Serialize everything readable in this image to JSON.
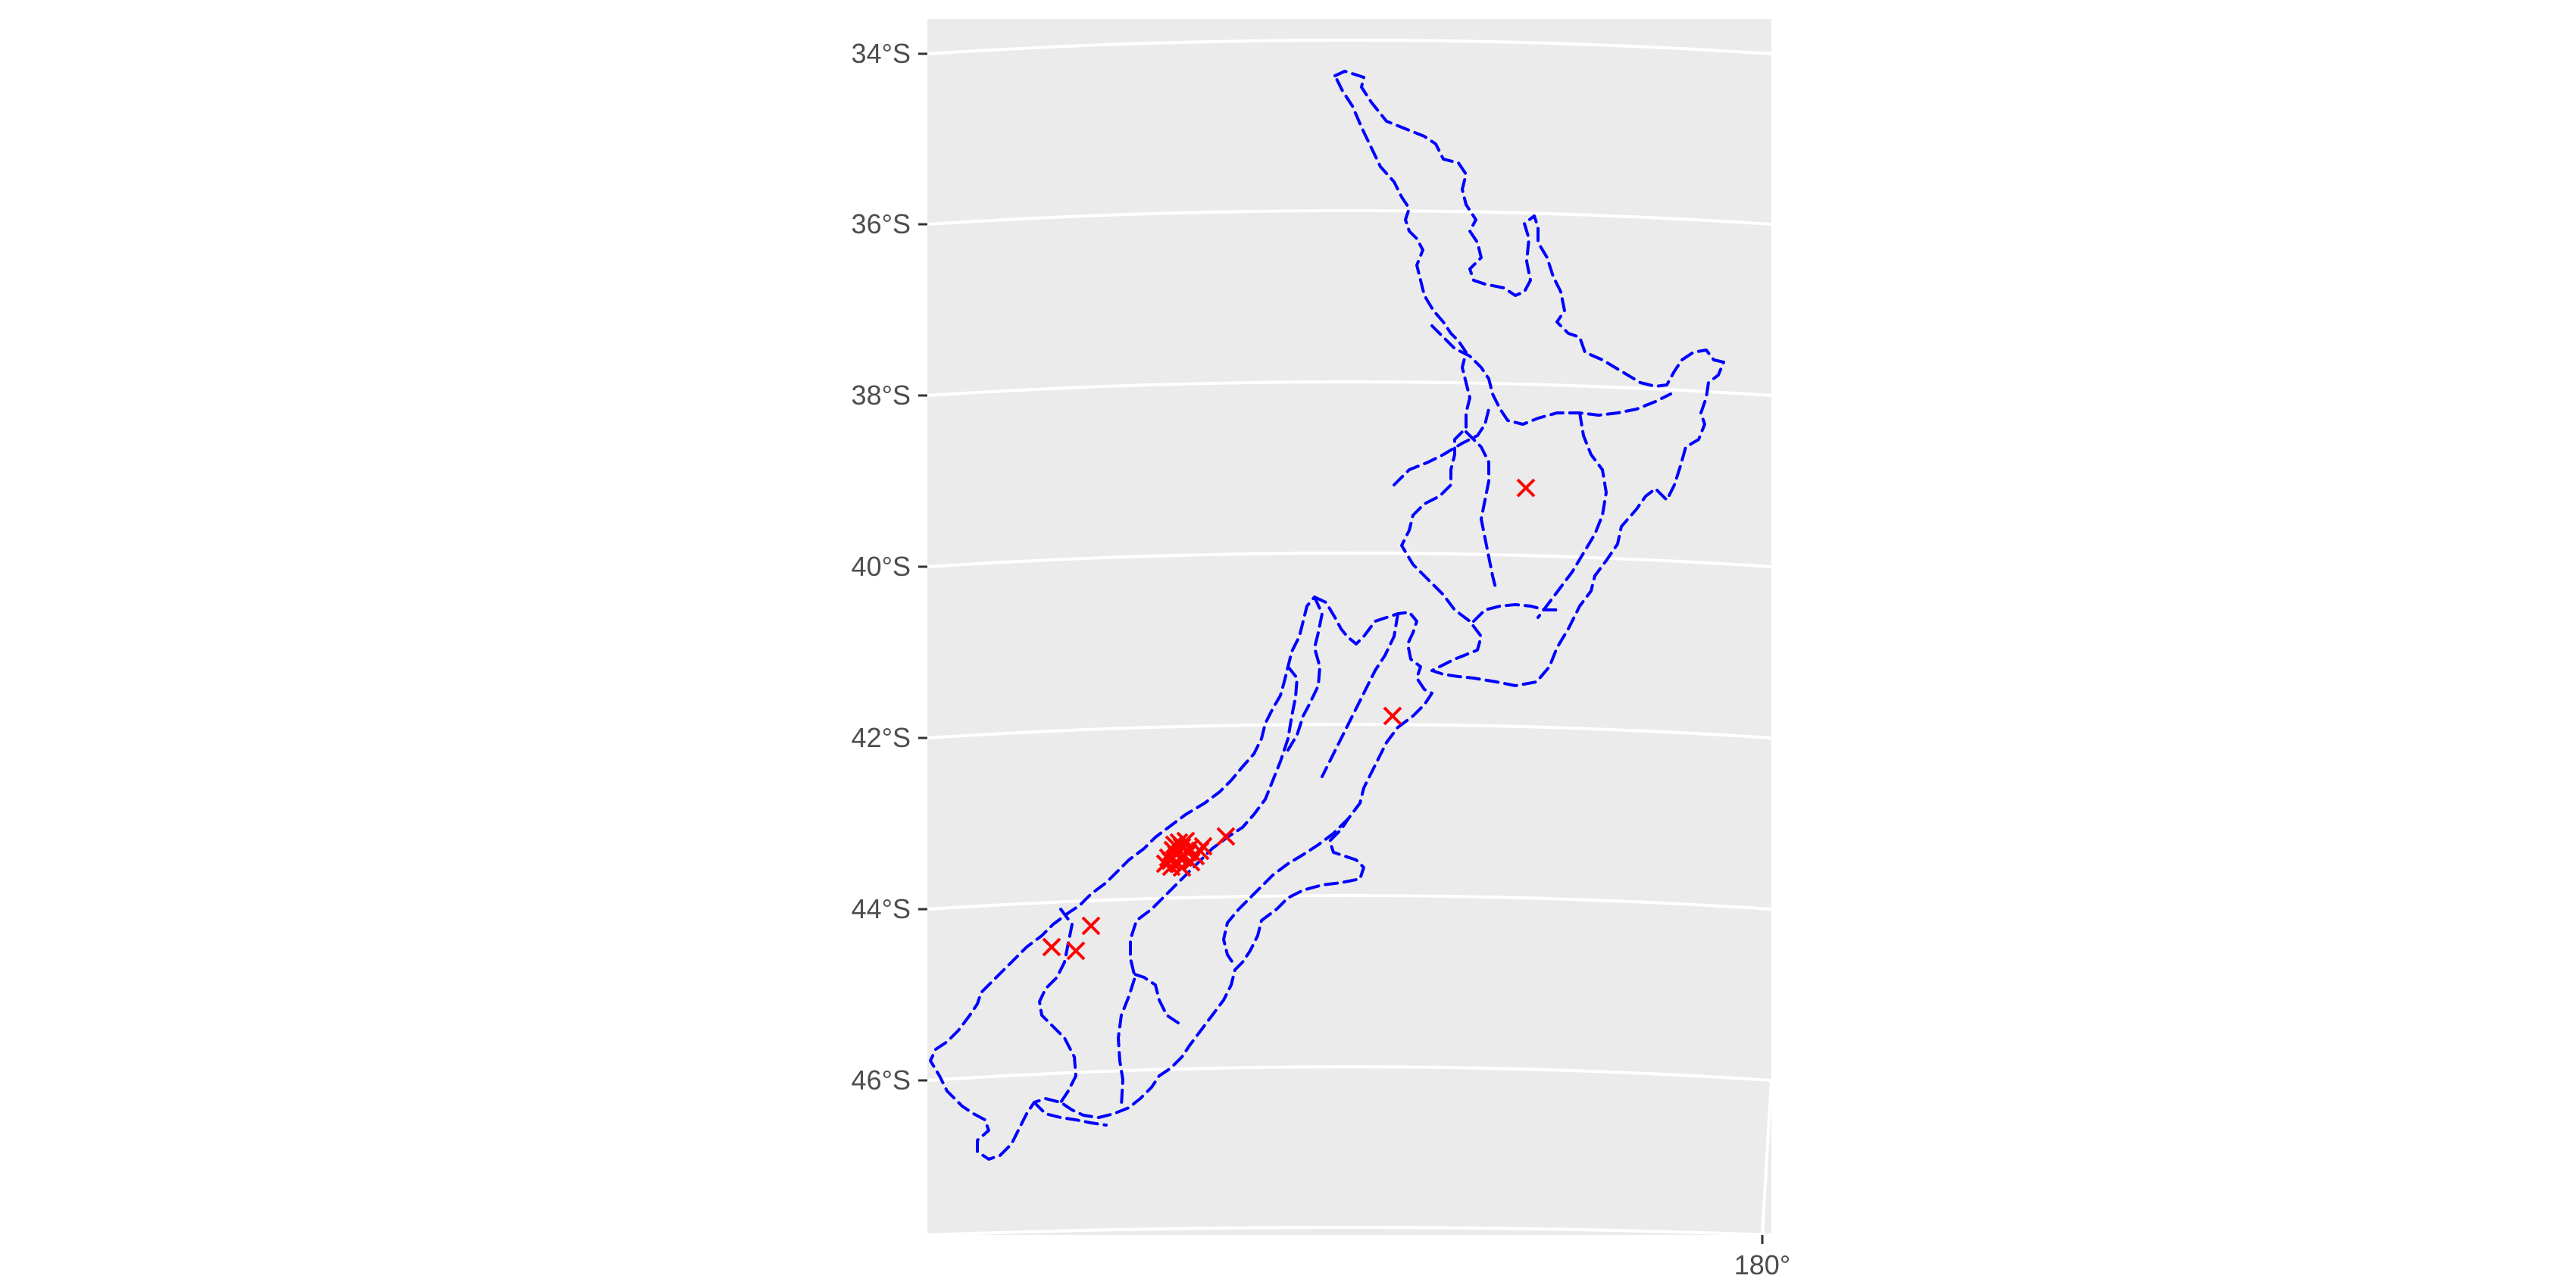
{
  "map": {
    "lat_labels": [
      "34°S",
      "36°S",
      "38°S",
      "40°S",
      "42°S",
      "44°S",
      "46°S"
    ],
    "lon_labels": [
      "180°"
    ],
    "panel_color": "#ebebeb",
    "grid_color": "#ffffff",
    "outline_color": "#0000ff",
    "marker_color": "#ff0000",
    "marker_symbol": "×",
    "features": [
      "north-island-outline",
      "south-island-outline",
      "regional-boundaries"
    ],
    "marker_count": 25
  }
}
